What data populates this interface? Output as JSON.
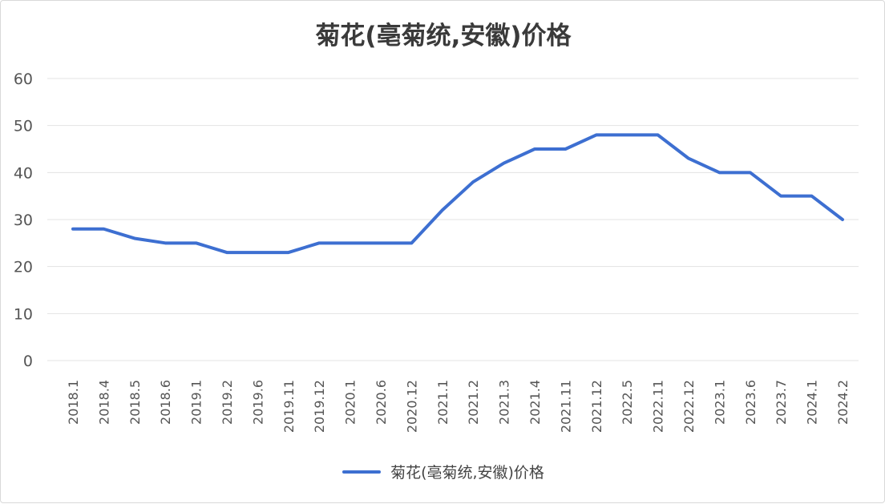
{
  "chart_data": {
    "type": "line",
    "title": "菊花(亳菊统,安徽)价格",
    "xlabel": "",
    "ylabel": "",
    "ylim": [
      0,
      60
    ],
    "yticks": [
      0,
      10,
      20,
      30,
      40,
      50,
      60
    ],
    "grid": true,
    "legend_position": "bottom",
    "categories": [
      "2018.1",
      "2018.4",
      "2018.5",
      "2018.6",
      "2019.1",
      "2019.2",
      "2019.6",
      "2019.11",
      "2019.12",
      "2020.1",
      "2020.6",
      "2020.12",
      "2021.1",
      "2021.2",
      "2021.3",
      "2021.4",
      "2021.11",
      "2021.12",
      "2022.5",
      "2022.11",
      "2022.12",
      "2023.1",
      "2023.6",
      "2023.7",
      "2024.1",
      "2024.2"
    ],
    "series": [
      {
        "name": "菊花(亳菊统,安徽)价格",
        "color": "#3d6fd1",
        "values": [
          28,
          28,
          26,
          25,
          25,
          23,
          23,
          23,
          25,
          25,
          25,
          25,
          32,
          38,
          42,
          45,
          45,
          48,
          48,
          48,
          43,
          40,
          40,
          35,
          35,
          30
        ]
      }
    ]
  }
}
